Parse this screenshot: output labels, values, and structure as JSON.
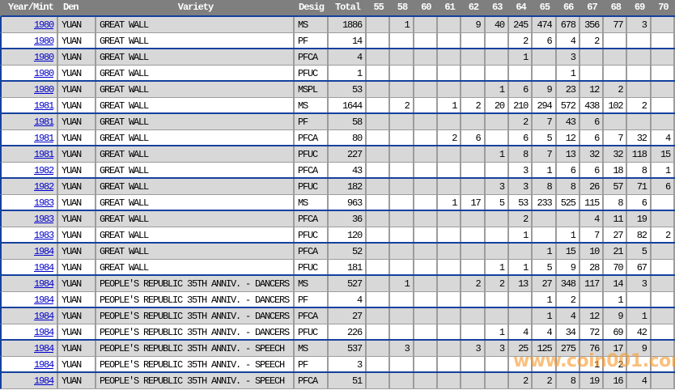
{
  "watermark": {
    "text": "www.coin001.com"
  },
  "colors": {
    "header_bg": "#7f7f7f",
    "header_text": "#ffffff",
    "row_shade": "#d8d8d8",
    "row_plain": "#ffffff",
    "grid": "#9c9c9c",
    "divider_blue": "#14419e",
    "link_blue": "#0000cc",
    "watermark_orange": "#f99b2e"
  },
  "table": {
    "columns": [
      "Year/Mint",
      "Den",
      "Variety",
      "Desig",
      "Total",
      "55",
      "58",
      "60",
      "61",
      "62",
      "63",
      "64",
      "65",
      "66",
      "67",
      "68",
      "69",
      "70"
    ],
    "grade_columns": [
      "55",
      "58",
      "60",
      "61",
      "62",
      "63",
      "64",
      "65",
      "66",
      "67",
      "68",
      "69",
      "70"
    ],
    "rows": [
      {
        "year": "1980",
        "den": "YUAN",
        "variety": "GREAT WALL",
        "desig": "MS",
        "total": "1886",
        "grades": [
          "",
          "1",
          "",
          "",
          "9",
          "40",
          "245",
          "474",
          "678",
          "356",
          "77",
          "3",
          ""
        ]
      },
      {
        "year": "1980",
        "den": "YUAN",
        "variety": "GREAT WALL",
        "desig": "PF",
        "total": "14",
        "grades": [
          "",
          "",
          "",
          "",
          "",
          "",
          "2",
          "6",
          "4",
          "2",
          "",
          "",
          ""
        ]
      },
      {
        "year": "1980",
        "den": "YUAN",
        "variety": "GREAT WALL",
        "desig": "PFCA",
        "total": "4",
        "grades": [
          "",
          "",
          "",
          "",
          "",
          "",
          "1",
          "",
          "3",
          "",
          "",
          "",
          ""
        ]
      },
      {
        "year": "1980",
        "den": "YUAN",
        "variety": "GREAT WALL",
        "desig": "PFUC",
        "total": "1",
        "grades": [
          "",
          "",
          "",
          "",
          "",
          "",
          "",
          "",
          "1",
          "",
          "",
          "",
          ""
        ]
      },
      {
        "year": "1980",
        "den": "YUAN",
        "variety": "GREAT WALL",
        "desig": "MSPL",
        "total": "53",
        "grades": [
          "",
          "",
          "",
          "",
          "",
          "1",
          "6",
          "9",
          "23",
          "12",
          "2",
          "",
          ""
        ]
      },
      {
        "year": "1981",
        "den": "YUAN",
        "variety": "GREAT WALL",
        "desig": "MS",
        "total": "1644",
        "grades": [
          "",
          "2",
          "",
          "1",
          "2",
          "20",
          "210",
          "294",
          "572",
          "438",
          "102",
          "2",
          ""
        ]
      },
      {
        "year": "1981",
        "den": "YUAN",
        "variety": "GREAT WALL",
        "desig": "PF",
        "total": "58",
        "grades": [
          "",
          "",
          "",
          "",
          "",
          "",
          "2",
          "7",
          "43",
          "6",
          "",
          "",
          ""
        ]
      },
      {
        "year": "1981",
        "den": "YUAN",
        "variety": "GREAT WALL",
        "desig": "PFCA",
        "total": "80",
        "grades": [
          "",
          "",
          "",
          "2",
          "6",
          "",
          "6",
          "5",
          "12",
          "6",
          "7",
          "32",
          "4"
        ]
      },
      {
        "year": "1981",
        "den": "YUAN",
        "variety": "GREAT WALL",
        "desig": "PFUC",
        "total": "227",
        "grades": [
          "",
          "",
          "",
          "",
          "",
          "1",
          "8",
          "7",
          "13",
          "32",
          "32",
          "118",
          "15"
        ]
      },
      {
        "year": "1982",
        "den": "YUAN",
        "variety": "GREAT WALL",
        "desig": "PFCA",
        "total": "43",
        "grades": [
          "",
          "",
          "",
          "",
          "",
          "",
          "3",
          "1",
          "6",
          "6",
          "18",
          "8",
          "1"
        ]
      },
      {
        "year": "1982",
        "den": "YUAN",
        "variety": "GREAT WALL",
        "desig": "PFUC",
        "total": "182",
        "grades": [
          "",
          "",
          "",
          "",
          "",
          "3",
          "3",
          "8",
          "8",
          "26",
          "57",
          "71",
          "6"
        ]
      },
      {
        "year": "1983",
        "den": "YUAN",
        "variety": "GREAT WALL",
        "desig": "MS",
        "total": "963",
        "grades": [
          "",
          "",
          "",
          "1",
          "17",
          "5",
          "53",
          "233",
          "525",
          "115",
          "8",
          "6",
          ""
        ]
      },
      {
        "year": "1983",
        "den": "YUAN",
        "variety": "GREAT WALL",
        "desig": "PFCA",
        "total": "36",
        "grades": [
          "",
          "",
          "",
          "",
          "",
          "",
          "2",
          "",
          "",
          "4",
          "11",
          "19",
          ""
        ]
      },
      {
        "year": "1983",
        "den": "YUAN",
        "variety": "GREAT WALL",
        "desig": "PFUC",
        "total": "120",
        "grades": [
          "",
          "",
          "",
          "",
          "",
          "",
          "1",
          "",
          "1",
          "7",
          "27",
          "82",
          "2"
        ]
      },
      {
        "year": "1984",
        "den": "YUAN",
        "variety": "GREAT WALL",
        "desig": "PFCA",
        "total": "52",
        "grades": [
          "",
          "",
          "",
          "",
          "",
          "",
          "",
          "1",
          "15",
          "10",
          "21",
          "5",
          ""
        ]
      },
      {
        "year": "1984",
        "den": "YUAN",
        "variety": "GREAT WALL",
        "desig": "PFUC",
        "total": "181",
        "grades": [
          "",
          "",
          "",
          "",
          "",
          "1",
          "1",
          "5",
          "9",
          "28",
          "70",
          "67",
          ""
        ]
      },
      {
        "year": "1984",
        "den": "YUAN",
        "variety": "PEOPLE'S REPUBLIC 35TH ANNIV. - DANCERS",
        "desig": "MS",
        "total": "527",
        "grades": [
          "",
          "1",
          "",
          "",
          "2",
          "2",
          "13",
          "27",
          "348",
          "117",
          "14",
          "3",
          ""
        ]
      },
      {
        "year": "1984",
        "den": "YUAN",
        "variety": "PEOPLE'S REPUBLIC 35TH ANNIV. - DANCERS",
        "desig": "PF",
        "total": "4",
        "grades": [
          "",
          "",
          "",
          "",
          "",
          "",
          "",
          "1",
          "2",
          "",
          "1",
          "",
          ""
        ]
      },
      {
        "year": "1984",
        "den": "YUAN",
        "variety": "PEOPLE'S REPUBLIC 35TH ANNIV. - DANCERS",
        "desig": "PFCA",
        "total": "27",
        "grades": [
          "",
          "",
          "",
          "",
          "",
          "",
          "",
          "1",
          "4",
          "12",
          "9",
          "1",
          ""
        ]
      },
      {
        "year": "1984",
        "den": "YUAN",
        "variety": "PEOPLE'S REPUBLIC 35TH ANNIV. - DANCERS",
        "desig": "PFUC",
        "total": "226",
        "grades": [
          "",
          "",
          "",
          "",
          "",
          "1",
          "4",
          "4",
          "34",
          "72",
          "69",
          "42",
          ""
        ]
      },
      {
        "year": "1984",
        "den": "YUAN",
        "variety": "PEOPLE'S REPUBLIC 35TH ANNIV. - SPEECH",
        "desig": "MS",
        "total": "537",
        "grades": [
          "",
          "3",
          "",
          "",
          "3",
          "3",
          "25",
          "125",
          "275",
          "76",
          "17",
          "9",
          ""
        ]
      },
      {
        "year": "1984",
        "den": "YUAN",
        "variety": "PEOPLE'S REPUBLIC 35TH ANNIV. - SPEECH",
        "desig": "PF",
        "total": "3",
        "grades": [
          "",
          "",
          "",
          "",
          "",
          "",
          "",
          "",
          "",
          "1",
          "2",
          "",
          ""
        ]
      },
      {
        "year": "1984",
        "den": "YUAN",
        "variety": "PEOPLE'S REPUBLIC 35TH ANNIV. - SPEECH",
        "desig": "PFCA",
        "total": "51",
        "grades": [
          "",
          "",
          "",
          "",
          "",
          "",
          "2",
          "2",
          "8",
          "19",
          "16",
          "4",
          ""
        ]
      }
    ]
  }
}
